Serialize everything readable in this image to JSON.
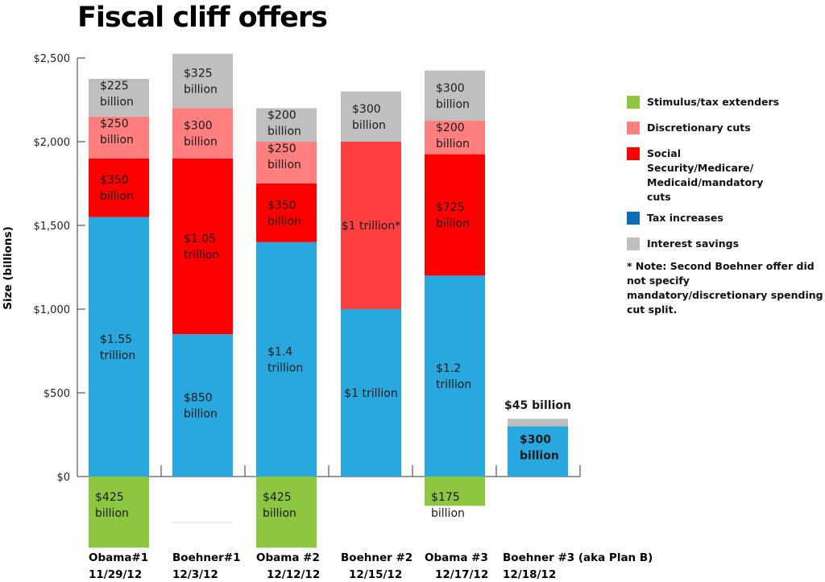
{
  "chart_data": {
    "type": "bar",
    "stacked": true,
    "title": "Fiscal cliff offers",
    "xlabel": "",
    "ylabel": "Size (billions)",
    "ylim": [
      -300,
      2500
    ],
    "yticks": [
      0,
      500,
      1000,
      1500,
      2000,
      2500
    ],
    "ytick_labels": [
      "$0",
      "$500",
      "$1,000",
      "$1,500",
      "$2,000",
      "$2,500"
    ],
    "grid": false,
    "legend_position": "right",
    "categories": [
      {
        "name": "Obama#1",
        "date": "11/29/12"
      },
      {
        "name": "Boehner#1",
        "date": "12/3/12"
      },
      {
        "name": "Obama #2",
        "date": "12/12/12"
      },
      {
        "name": "Boehner #2",
        "date": "12/15/12"
      },
      {
        "name": "Obama #3",
        "date": "12/17/12"
      },
      {
        "name": "Boehner #3 (aka Plan B)",
        "date": "12/18/12"
      }
    ],
    "series": [
      {
        "name": "Stimulus/tax extenders",
        "color": "#8dc63f",
        "negative": true,
        "values": [
          425,
          0,
          425,
          0,
          175,
          0
        ],
        "labels": [
          "$425|billion",
          "",
          "$425|billion",
          "",
          "$175|billion",
          ""
        ]
      },
      {
        "name": "Tax increases",
        "color": "#29a8e0",
        "values": [
          1550,
          850,
          1400,
          1000,
          1200,
          300
        ],
        "labels": [
          "$1.55|trillion",
          "$850|billion",
          "$1.4|trillion",
          "$1 trillion",
          "$1.2|trillion",
          "$300|billion"
        ]
      },
      {
        "name": "Social Security/Medicare/Medicaid/mandatory cuts",
        "color": "#ff0000",
        "values": [
          350,
          1050,
          350,
          1000,
          725,
          0
        ],
        "labels": [
          "$350|billion",
          "$1.05|trillion",
          "$350|billion",
          "$1 trillion*",
          "$725|billion",
          ""
        ]
      },
      {
        "name": "Discretionary cuts",
        "color": "#ff7f7f",
        "values": [
          250,
          300,
          250,
          0,
          200,
          0
        ],
        "labels": [
          "$250|billion",
          "$300|billion",
          "$250|billion",
          "",
          "$200|billion",
          ""
        ]
      },
      {
        "name": "Interest savings",
        "color": "#bfbfbf",
        "values": [
          225,
          325,
          200,
          300,
          300,
          45
        ],
        "labels": [
          "$225|billion",
          "$325|billion",
          "$200|billion",
          "$300|billion",
          "$300|billion",
          "$45 billion"
        ]
      }
    ],
    "special_colors": {
      "boehner2_combined_cuts": "#ff4040"
    }
  },
  "legend": {
    "items": [
      {
        "label": "Stimulus/tax extenders",
        "color": "#8dc63f"
      },
      {
        "label": "Discretionary cuts",
        "color": "#ff7f7f"
      },
      {
        "label": "Social Security/Medicare/ Medicaid/mandatory cuts",
        "color": "#ff0000"
      },
      {
        "label": "Tax increases",
        "color": "#0a6db5"
      },
      {
        "label": "Interest savings",
        "color": "#bfbfbf"
      }
    ],
    "note": "* Note: Second Boehner offer did not specify mandatory/discretionary spending cut split."
  }
}
